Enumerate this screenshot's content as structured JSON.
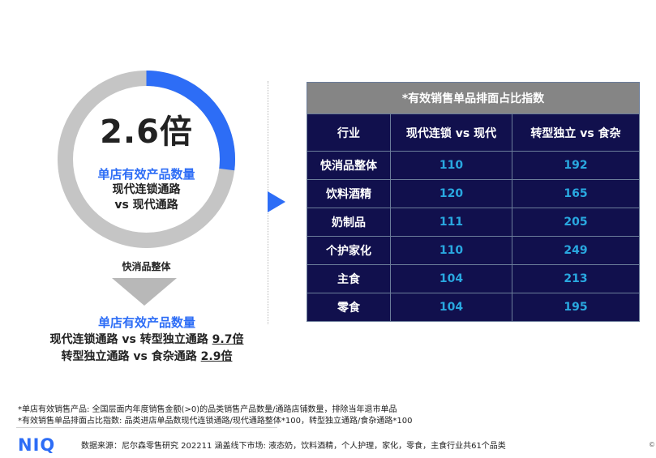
{
  "colors": {
    "accent": "#2d6df6",
    "ring_gray": "#c5c5c5",
    "table_bg": "#11104d",
    "table_title_bg": "#858585",
    "value_color": "#29a8e0"
  },
  "ring": {
    "fraction": 0.27,
    "big_text": "2.6倍",
    "line1": "单店有效产品数量",
    "line2": "现代连锁通路",
    "line3": "vs 现代通路"
  },
  "category_label": "快消品整体",
  "summary": {
    "title": "单店有效产品数量",
    "row1_text": "现代连锁通路 vs 转型独立通路 ",
    "row1_value": "9.7倍",
    "row2_text": "转型独立通路 vs 食杂通路 ",
    "row2_value": "2.9倍"
  },
  "chart_data": {
    "type": "table",
    "title": "*有效销售单品排面占比指数",
    "headers": [
      "行业",
      "现代连锁 vs 现代",
      "转型独立 vs 食杂"
    ],
    "rows": [
      {
        "category": "快消品整体",
        "v1": "110",
        "v2": "192"
      },
      {
        "category": "饮料酒精",
        "v1": "120",
        "v2": "165"
      },
      {
        "category": "奶制品",
        "v1": "111",
        "v2": "205"
      },
      {
        "category": "个护家化",
        "v1": "110",
        "v2": "249"
      },
      {
        "category": "主食",
        "v1": "104",
        "v2": "213"
      },
      {
        "category": "零食",
        "v1": "104",
        "v2": "195"
      }
    ]
  },
  "footnotes": {
    "line1": "*单店有效销售产品: 全国层面内年度销售金额(>0)的品类销售产品数量/通路店铺数量，排除当年退市单品",
    "line2": "*有效销售单品排面占比指数: 品类进店单品数现代连锁通路/现代通路整体*100，转型独立通路/食杂通路*100"
  },
  "logo": "NIQ",
  "source": "数据来源：尼尔森零售研究 202211 涵盖线下市场: 液态奶，饮料酒精，个人护理，家化，零食，主食行业共61个品类",
  "corner": "©"
}
